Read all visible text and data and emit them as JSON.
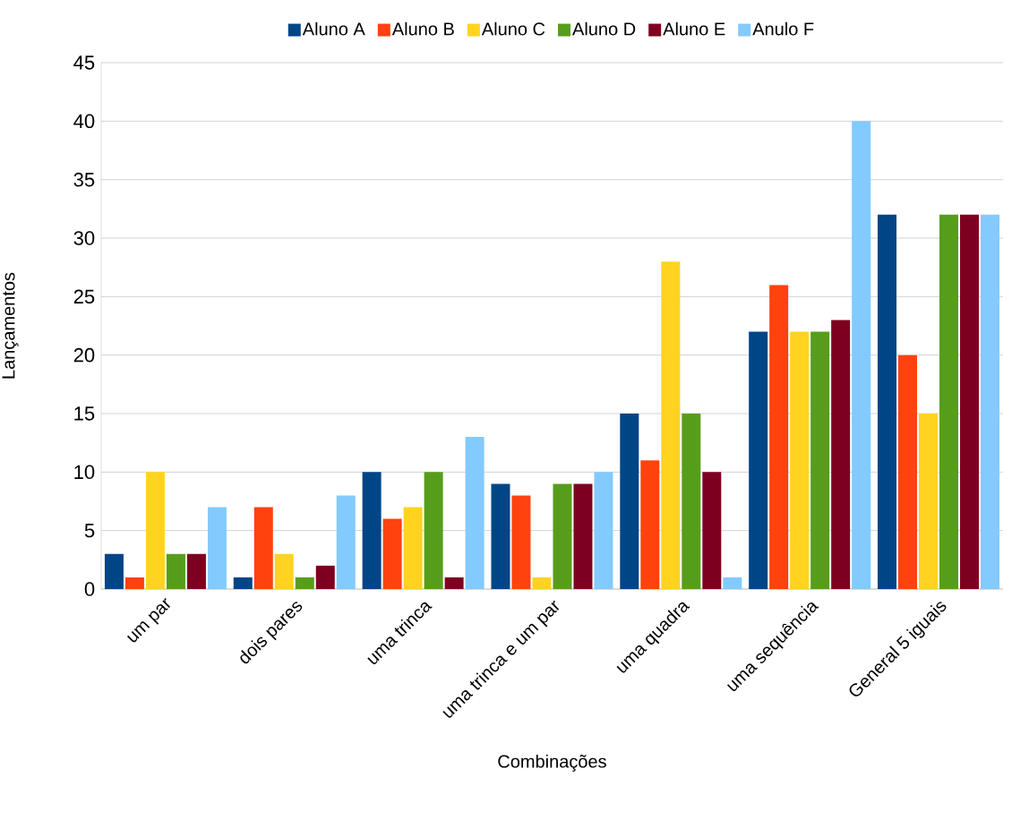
{
  "chart_data": {
    "type": "bar",
    "xlabel": "Combinações",
    "ylabel": "Lançamentos",
    "categories": [
      "um par",
      "dois pares",
      "uma trinca",
      "uma trinca e um par",
      "uma quadra",
      "uma sequência",
      "General 5 iguais"
    ],
    "series": [
      {
        "name": "Aluno A",
        "color": "#004586",
        "values": [
          3,
          1,
          10,
          9,
          15,
          22,
          32
        ]
      },
      {
        "name": "Aluno B",
        "color": "#ff420e",
        "values": [
          1,
          7,
          6,
          8,
          11,
          26,
          20
        ]
      },
      {
        "name": "Aluno C",
        "color": "#ffd320",
        "values": [
          10,
          3,
          7,
          1,
          28,
          22,
          15
        ]
      },
      {
        "name": "Aluno D",
        "color": "#579d1c",
        "values": [
          3,
          1,
          10,
          9,
          15,
          22,
          32
        ]
      },
      {
        "name": "Aluno E",
        "color": "#7e0021",
        "values": [
          3,
          2,
          1,
          9,
          10,
          23,
          32
        ]
      },
      {
        "name": "Anulo F",
        "color": "#83caff",
        "values": [
          7,
          8,
          13,
          10,
          1,
          40,
          32
        ]
      }
    ],
    "ylim": [
      0,
      45
    ],
    "yticks": [
      0,
      5,
      10,
      15,
      20,
      25,
      30,
      35,
      40,
      45
    ],
    "grid": "y",
    "legend": "top"
  }
}
